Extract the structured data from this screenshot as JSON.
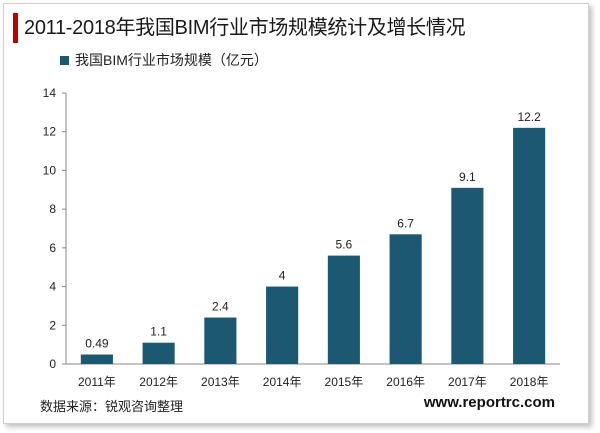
{
  "title": "2011-2018年我国BIM行业市场规模统计及增长情况",
  "source_text": "数据来源：锐观咨询整理",
  "website": "www.reportrc.com",
  "colors": {
    "bar": "#1d5872",
    "title_accent": "#c00000"
  },
  "chart_data": {
    "type": "bar",
    "title": "2011-2018年我国BIM行业市场规模统计及增长情况",
    "categories": [
      "2011年",
      "2012年",
      "2013年",
      "2014年",
      "2015年",
      "2016年",
      "2017年",
      "2018年"
    ],
    "series": [
      {
        "name": "我国BIM行业市场规模（亿元）",
        "values": [
          0.49,
          1.1,
          2.4,
          4,
          5.6,
          6.7,
          9.1,
          12.2
        ],
        "labels": [
          "0.49",
          "1.1",
          "2.4",
          "4",
          "5.6",
          "6.7",
          "9.1",
          "12.2"
        ]
      }
    ],
    "ylim": [
      0,
      14
    ],
    "yticks": [
      0,
      2,
      4,
      6,
      8,
      10,
      12,
      14
    ],
    "xlabel": "",
    "ylabel": "",
    "grid": false,
    "legend": "top-left"
  }
}
